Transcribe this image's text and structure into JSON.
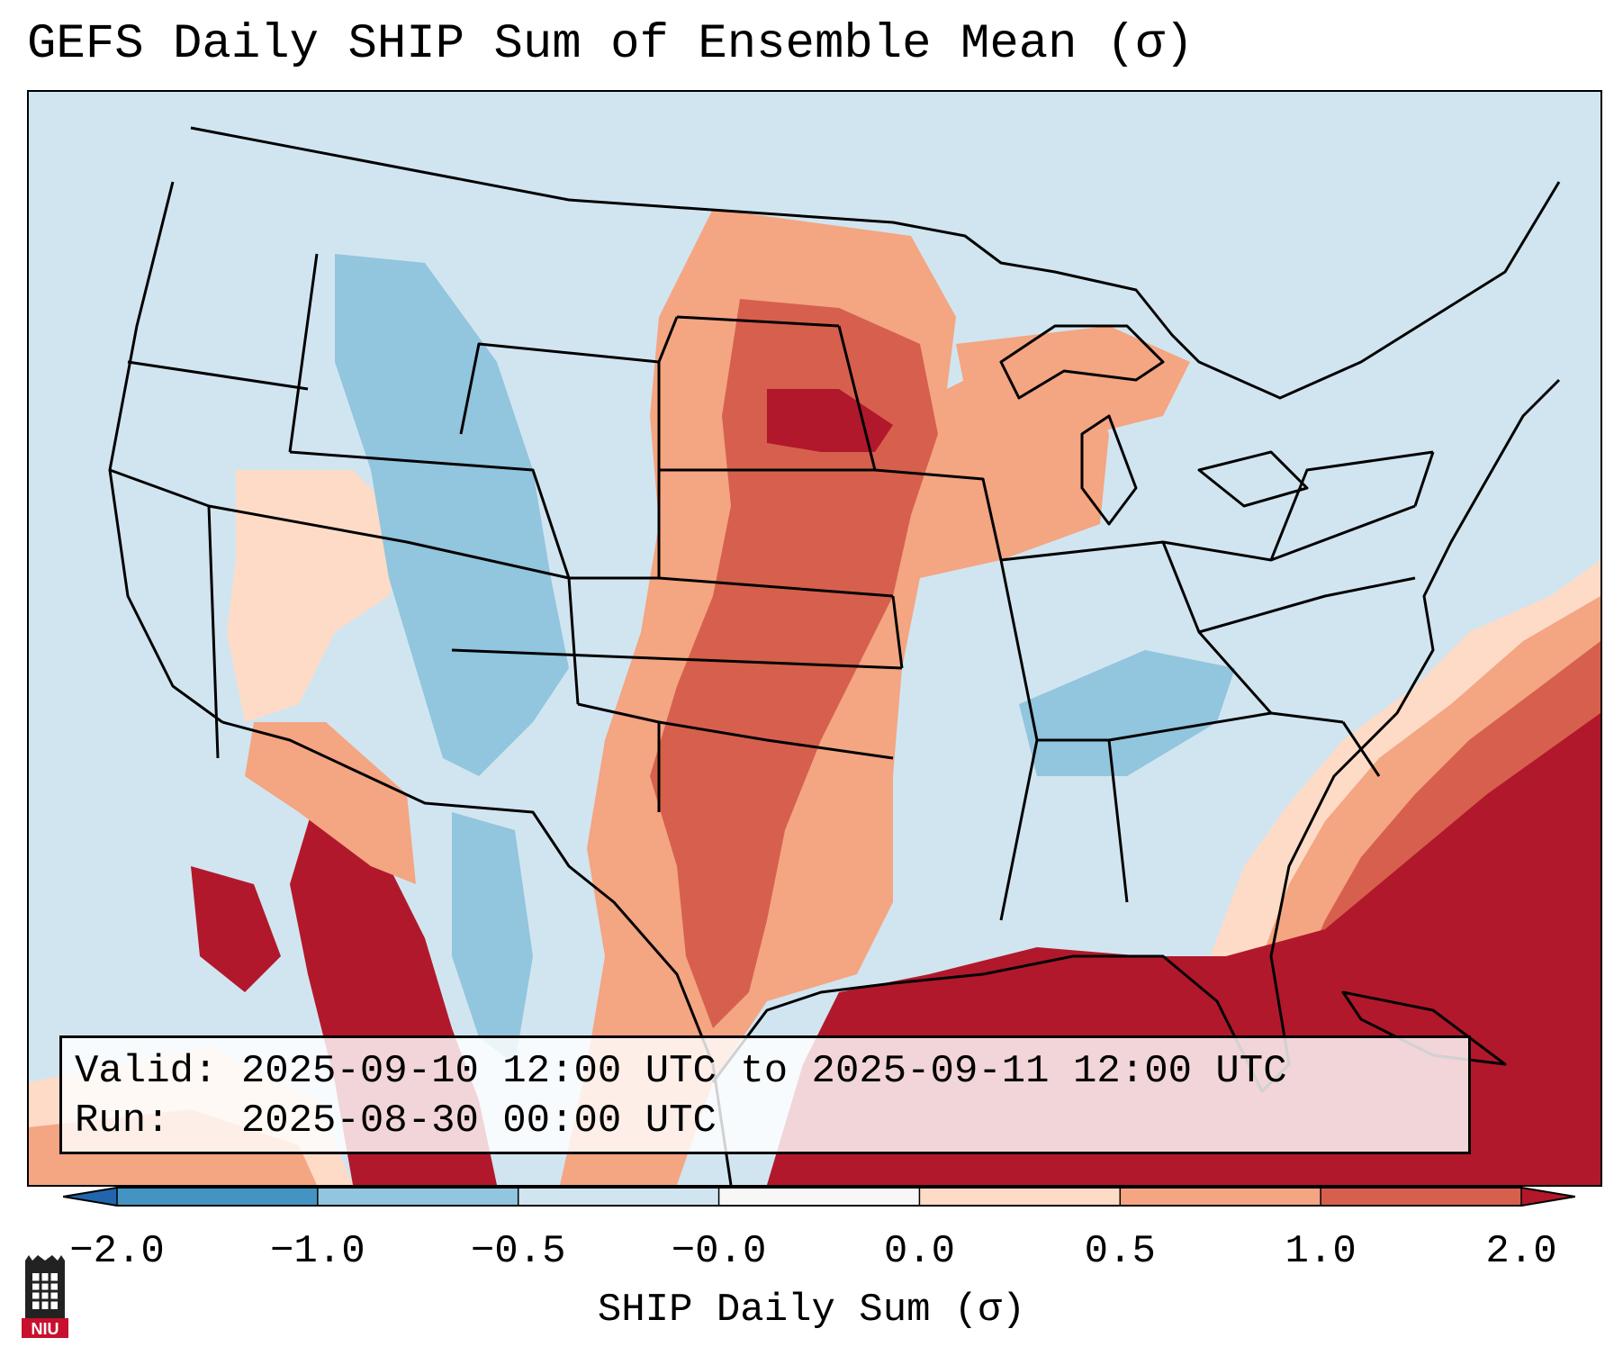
{
  "title": "GEFS Daily SHIP Sum of Ensemble Mean (σ)",
  "info": {
    "valid_line": "Valid: 2025-09-10 12:00 UTC to 2025-09-11 12:00 UTC",
    "run_line": "Run:   2025-08-30 00:00 UTC"
  },
  "colorbar": {
    "label": "SHIP Daily Sum (σ)",
    "ticks": [
      "−2.0",
      "−1.0",
      "−0.5",
      "−0.0",
      "0.0",
      "0.5",
      "1.0",
      "2.0"
    ],
    "bins": [
      {
        "color": "#2166ac"
      },
      {
        "color": "#4393c3"
      },
      {
        "color": "#92c5de"
      },
      {
        "color": "#d1e5f0"
      },
      {
        "color": "#f7f7f7"
      },
      {
        "color": "#fddbc7"
      },
      {
        "color": "#f4a582"
      },
      {
        "color": "#d6604d"
      },
      {
        "color": "#b2182b"
      }
    ]
  },
  "map": {
    "background_color": "#d1e5f0",
    "regions": [
      {
        "name": "gulf-atlantic-high",
        "color": "#b2182b"
      },
      {
        "name": "atlantic-ring-1",
        "color": "#d6604d"
      },
      {
        "name": "atlantic-ring-2",
        "color": "#f4a582"
      },
      {
        "name": "atlantic-ring-3",
        "color": "#fddbc7"
      },
      {
        "name": "plains-moderate",
        "color": "#f4a582"
      },
      {
        "name": "plains-high",
        "color": "#d6604d"
      },
      {
        "name": "dakotas-peak",
        "color": "#b2182b"
      },
      {
        "name": "mexico-west-high",
        "color": "#b2182b"
      },
      {
        "name": "rockies-low",
        "color": "#92c5de"
      },
      {
        "name": "southwest-light",
        "color": "#fddbc7"
      },
      {
        "name": "tennessee-low",
        "color": "#92c5de"
      }
    ]
  },
  "logo": {
    "text": "NIU"
  }
}
